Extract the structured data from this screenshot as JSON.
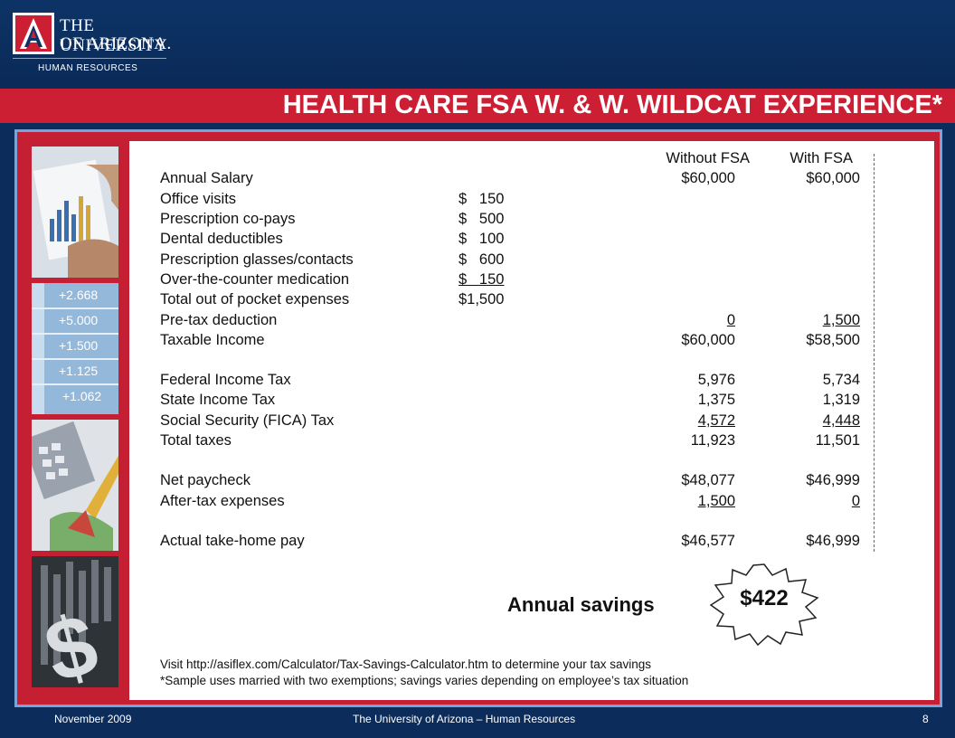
{
  "logo": {
    "line1": "THE UNIVERSITY",
    "line2": "OF ARIZONA.",
    "line3": "HUMAN RESOURCES"
  },
  "title": "HEALTH CARE FSA W. & W. WILDCAT EXPERIENCE*",
  "colors": {
    "navy": "#0c2d5c",
    "red": "#cc1f34",
    "frame": "#7aa3d8"
  },
  "table": {
    "col_without": "Without FSA",
    "col_with": "With FSA",
    "rows": [
      {
        "label": "Annual Salary",
        "expense": "",
        "without": "$60,000",
        "with": "$60,000"
      },
      {
        "label": "Office visits",
        "expense": "$   150",
        "without": "",
        "with": ""
      },
      {
        "label": "Prescription co-pays",
        "expense": "$   500",
        "without": "",
        "with": ""
      },
      {
        "label": "Dental deductibles",
        "expense": "$   100",
        "without": "",
        "with": ""
      },
      {
        "label": "Prescription glasses/contacts",
        "expense": "$   600",
        "without": "",
        "with": ""
      },
      {
        "label": "Over-the-counter medication",
        "expense": "$   150",
        "without": "",
        "with": ""
      },
      {
        "label": "Total out of pocket expenses",
        "expense": "$1,500",
        "without": "",
        "with": ""
      },
      {
        "label": "Pre-tax deduction",
        "expense": "",
        "without": "0",
        "with": "1,500"
      },
      {
        "label": "Taxable Income",
        "expense": "",
        "without": "$60,000",
        "with": "$58,500"
      },
      {
        "label": "Federal Income Tax",
        "expense": "",
        "without": "5,976",
        "with": "5,734"
      },
      {
        "label": "State Income Tax",
        "expense": "",
        "without": "1,375",
        "with": "1,319"
      },
      {
        "label": "Social Security (FICA) Tax",
        "expense": "",
        "without": "4,572",
        "with": "4,448"
      },
      {
        "label": "Total taxes",
        "expense": "",
        "without": "11,923",
        "with": "11,501"
      },
      {
        "label": "Net paycheck",
        "expense": "",
        "without": "$48,077",
        "with": "$46,999"
      },
      {
        "label": "After-tax expenses",
        "expense": "",
        "without": "1,500",
        "with": "0"
      },
      {
        "label": "Actual take-home pay",
        "expense": "",
        "without": "$46,577",
        "with": "$46,999"
      }
    ]
  },
  "savings": {
    "label": "Annual savings",
    "amount": "$422"
  },
  "notes": {
    "visit": "Visit http://asiflex.com/Calculator/Tax-Savings-Calculator.htm to determine your tax savings",
    "sample": "*Sample uses married with two exemptions; savings varies depending on employee’s tax situation"
  },
  "footer": {
    "date": "November 2009",
    "org": "The University of Arizona – Human Resources",
    "page": "8"
  },
  "side_images": {
    "ticker1": "+2.668",
    "ticker2": "+5.000",
    "ticker3": "+1.500",
    "ticker4": "+1.125",
    "ticker5": "+1.062"
  }
}
